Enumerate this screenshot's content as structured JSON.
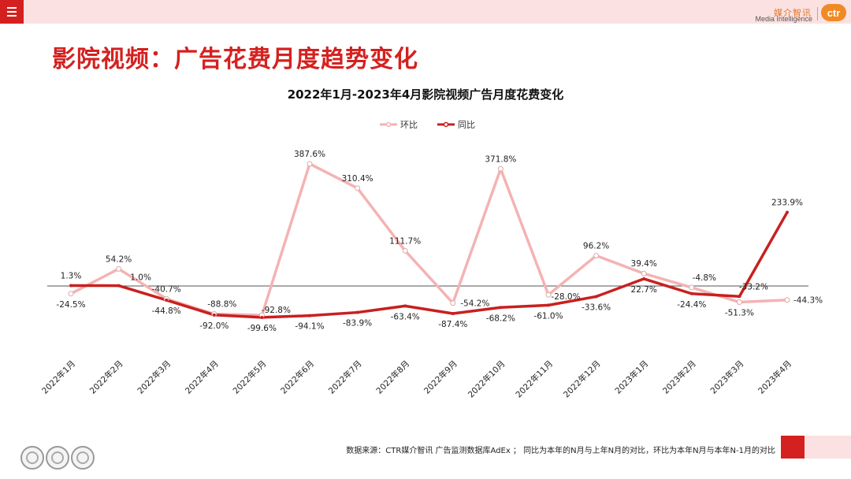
{
  "header": {
    "brand_cn": "媒介智讯",
    "brand_en": "Media Intelligence",
    "logo_text": "ctr"
  },
  "page_title": "影院视频：广告花费月度趋势变化",
  "footer": {
    "source_note": "数据来源：CTR媒介智讯 广告监测数据库AdEx ； 同比为本年的N月与上年N月的对比，环比为本年N月与本年N-1月的对比"
  },
  "colors": {
    "brand_red": "#d42120",
    "accent_orange": "#f08a24",
    "series_mom": "#f4b3b3",
    "series_yoy": "#c8201f"
  },
  "icons": [
    "menu-icon",
    "ctr-logo-icon",
    "certification-badge-icon"
  ],
  "chart_data": {
    "type": "line",
    "title": "2022年1月-2023年4月影院视频广告月度花费变化",
    "xlabel": "",
    "ylabel": "",
    "legend_position": "top",
    "grid": false,
    "ylim": [
      -110,
      410
    ],
    "baseline_value": 0,
    "x": [
      "2022年1月",
      "2022年2月",
      "2022年3月",
      "2022年4月",
      "2022年5月",
      "2022年6月",
      "2022年7月",
      "2022年8月",
      "2022年9月",
      "2022年10月",
      "2022年11月",
      "2022年12月",
      "2023年1月",
      "2023年2月",
      "2023年3月",
      "2023年4月"
    ],
    "series": [
      {
        "name": "环比",
        "values": [
          -24.5,
          54.2,
          -40.7,
          -88.8,
          -92.8,
          387.6,
          310.4,
          111.7,
          -54.2,
          371.8,
          -28.0,
          96.2,
          39.4,
          -4.8,
          -51.3,
          -44.3
        ],
        "labels": [
          "-24.5%",
          "54.2%",
          "-40.7%",
          "-88.8%",
          "-92.8%",
          "387.6%",
          "310.4%",
          "111.7%",
          "-54.2%",
          "371.8%",
          "-28.0%",
          "96.2%",
          "39.4%",
          "-4.8%",
          "-51.3%",
          "-44.3%"
        ]
      },
      {
        "name": "同比",
        "values": [
          1.3,
          1.0,
          -44.8,
          -92.0,
          -99.6,
          -94.1,
          -83.9,
          -63.4,
          -87.4,
          -68.2,
          -61.0,
          -33.6,
          22.7,
          -24.4,
          -33.2,
          233.9
        ],
        "labels": [
          "1.3%",
          "1.0%",
          "-44.8%",
          "-92.0%",
          "-99.6%",
          "-94.1%",
          "-83.9%",
          "-63.4%",
          "-87.4%",
          "-68.2%",
          "-61.0%",
          "-33.6%",
          "22.7%",
          "-24.4%",
          "-33.2%",
          "233.9%"
        ]
      }
    ]
  }
}
